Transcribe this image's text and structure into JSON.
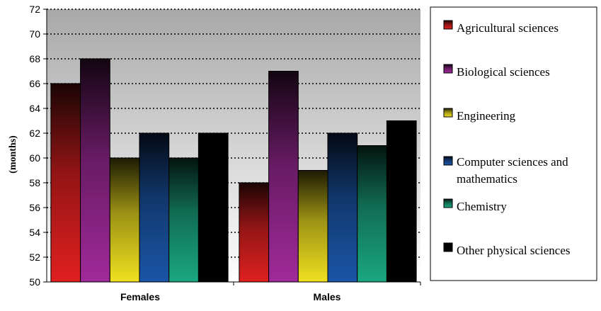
{
  "chart_data": {
    "type": "bar",
    "title": "",
    "xlabel": "",
    "ylabel": "(months)",
    "ylim": [
      50,
      72
    ],
    "yticks": [
      50,
      52,
      54,
      56,
      58,
      60,
      62,
      64,
      66,
      68,
      70,
      72
    ],
    "grid": true,
    "legend_position": "right",
    "categories": [
      "Females",
      "Males"
    ],
    "series": [
      {
        "name": "Agricultural sciences",
        "values": [
          66,
          58
        ],
        "color": "#e02020"
      },
      {
        "name": "Biological sciences",
        "values": [
          68,
          67
        ],
        "color": "#a02a9a"
      },
      {
        "name": "Engineering",
        "values": [
          60,
          59
        ],
        "color": "#f0e020"
      },
      {
        "name": "Computer sciences and mathematics",
        "values": [
          62,
          62
        ],
        "color": "#1a56a8"
      },
      {
        "name": "Chemistry",
        "values": [
          60,
          61
        ],
        "color": "#1aa880"
      },
      {
        "name": "Other physical sciences",
        "values": [
          62,
          63
        ],
        "color": "#000000"
      }
    ]
  }
}
